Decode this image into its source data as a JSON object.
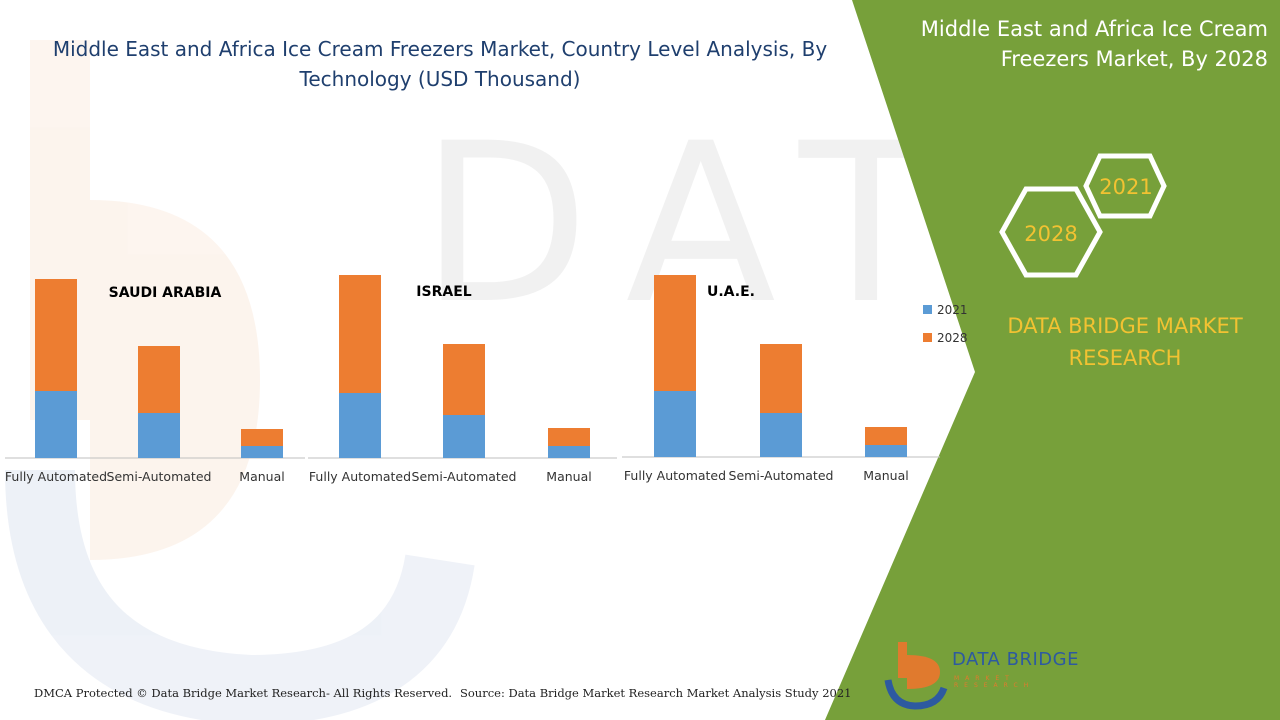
{
  "header": {
    "title": "Middle East and Africa Ice Cream Freezers Market, Country Level Analysis, By Technology (USD Thousand)",
    "side_title": "Middle East and Africa Ice Cream Freezers Market, By 2028"
  },
  "badges": {
    "year_a": "2021",
    "year_b": "2028"
  },
  "brand": {
    "tagline": "DATA BRIDGE MARKET RESEARCH",
    "logo_name": "DATA BRIDGE",
    "logo_sub": "MARKET RESEARCH"
  },
  "footer": {
    "copyright": "DMCA Protected © Data Bridge Market Research- All Rights Reserved.",
    "source": "Source: Data Bridge Market Research Market Analysis Study 2021"
  },
  "colors": {
    "s2021": "#5b9bd5",
    "s2028": "#ed7d31",
    "green": "#77a03a",
    "title_blue": "#1f3f6e",
    "gold": "#f2c232"
  },
  "chart_data": {
    "type": "bar",
    "stacked": true,
    "legend": {
      "position": "right",
      "entries": [
        "2021",
        "2028"
      ]
    },
    "charts": [
      {
        "title": "SAUDI ARABIA",
        "categories": [
          "Fully Automated",
          "Semi-Automated",
          "Manual"
        ],
        "series": [
          {
            "name": "2021",
            "values": [
              67,
              45,
              12
            ]
          },
          {
            "name": "2028",
            "values": [
              112,
              67,
              17
            ]
          }
        ]
      },
      {
        "title": "ISRAEL",
        "categories": [
          "Fully Automated",
          "Semi-Automated",
          "Manual"
        ],
        "series": [
          {
            "name": "2021",
            "values": [
              65,
              43,
              12
            ]
          },
          {
            "name": "2028",
            "values": [
              118,
              71,
              18
            ]
          }
        ]
      },
      {
        "title": "U.A.E.",
        "categories": [
          "Fully Automated",
          "Semi-Automated",
          "Manual"
        ],
        "series": [
          {
            "name": "2021",
            "values": [
              66,
              44,
              12
            ]
          },
          {
            "name": "2028",
            "values": [
              116,
              69,
              18
            ]
          }
        ]
      }
    ]
  }
}
